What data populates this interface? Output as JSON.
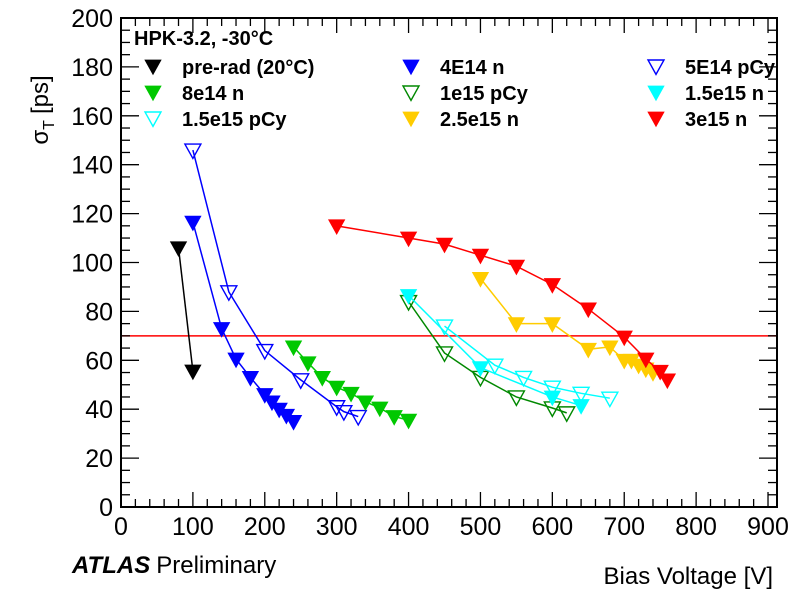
{
  "chart_data": {
    "type": "scatter",
    "title": "HPK-3.2, -30°C",
    "xlabel": "Bias Voltage [V]",
    "ylabel_main": "σ",
    "ylabel_sub": "T",
    "ylabel_unit": "[ps]",
    "xlim": [
      0,
      910
    ],
    "ylim": [
      0,
      200
    ],
    "x_ticks": [
      0,
      100,
      200,
      300,
      400,
      500,
      600,
      700,
      800,
      900
    ],
    "y_ticks": [
      0,
      20,
      40,
      60,
      80,
      100,
      120,
      140,
      160,
      180,
      200
    ],
    "x_tick_labels": [
      "0",
      "100",
      "200",
      "300",
      "400",
      "500",
      "600",
      "700",
      "800",
      "900"
    ],
    "y_tick_labels": [
      "0",
      "20",
      "40",
      "60",
      "80",
      "100",
      "120",
      "140",
      "160",
      "180",
      "200"
    ],
    "grid": false,
    "legend_position": "top",
    "reference_line": {
      "y": 70,
      "color": "#ff0000"
    },
    "annotation": {
      "bold_italic": "ATLAS",
      "normal": "Preliminary"
    },
    "series": [
      {
        "name": "pre-rad (20°C)",
        "color": "#000000",
        "marker": "filled",
        "x": [
          80,
          100
        ],
        "y": [
          106,
          55.6
        ]
      },
      {
        "name": "4E14 n",
        "color": "#0000ff",
        "marker": "filled",
        "x": [
          100,
          140,
          160,
          180,
          200,
          210,
          220,
          230,
          240
        ],
        "y": [
          116.5,
          73,
          60.5,
          53,
          46,
          43,
          40,
          37.5,
          35
        ]
      },
      {
        "name": "5E14 pCy",
        "color": "#0000ff",
        "marker": "open",
        "x": [
          100,
          150,
          200,
          250,
          300,
          310,
          330
        ],
        "y": [
          146,
          88,
          64,
          52,
          41,
          39,
          37
        ]
      },
      {
        "name": "8e14 n",
        "color": "#00c800",
        "marker": "filled",
        "x": [
          240,
          260,
          280,
          300,
          320,
          340,
          360,
          380,
          400
        ],
        "y": [
          65.5,
          59,
          53,
          49,
          46.5,
          43,
          40.5,
          37,
          35.5
        ]
      },
      {
        "name": "1e15 pCy",
        "color": "#008800",
        "marker": "open",
        "x": [
          400,
          450,
          500,
          550,
          600,
          620
        ],
        "y": [
          84,
          63,
          53,
          45,
          40.5,
          38.5
        ]
      },
      {
        "name": "1.5e15 n",
        "color": "#00ffff",
        "marker": "filled",
        "x": [
          400,
          500,
          600,
          640
        ],
        "y": [
          86.5,
          57,
          45,
          41.5
        ]
      },
      {
        "name": "1.5e15 pCy",
        "color": "#00ffff",
        "marker": "open",
        "x": [
          450,
          520,
          560,
          600,
          640,
          680
        ],
        "y": [
          74,
          58,
          53,
          49,
          46.5,
          44.5
        ]
      },
      {
        "name": "2.5e15 n",
        "color": "#ffcc00",
        "marker": "filled",
        "x": [
          500,
          550,
          600,
          650,
          680,
          700,
          710,
          720,
          730,
          740
        ],
        "y": [
          93.5,
          75,
          75,
          64.5,
          65.5,
          60,
          60,
          58,
          56.5,
          55
        ]
      },
      {
        "name": "3e15 n",
        "color": "#ff0000",
        "marker": "filled",
        "x": [
          300,
          400,
          450,
          500,
          550,
          600,
          650,
          700,
          730,
          750,
          760
        ],
        "y": [
          115,
          110,
          107.5,
          103,
          98.5,
          91,
          81,
          69.5,
          60.5,
          55.5,
          52
        ]
      }
    ],
    "legend_layout": [
      [
        "pre-rad (20°C)",
        "4E14 n",
        "5E14 pCy"
      ],
      [
        "8e14 n",
        "1e15 pCy",
        "1.5e15 n"
      ],
      [
        "1.5e15 pCy",
        "2.5e15 n",
        "3e15 n"
      ]
    ]
  }
}
